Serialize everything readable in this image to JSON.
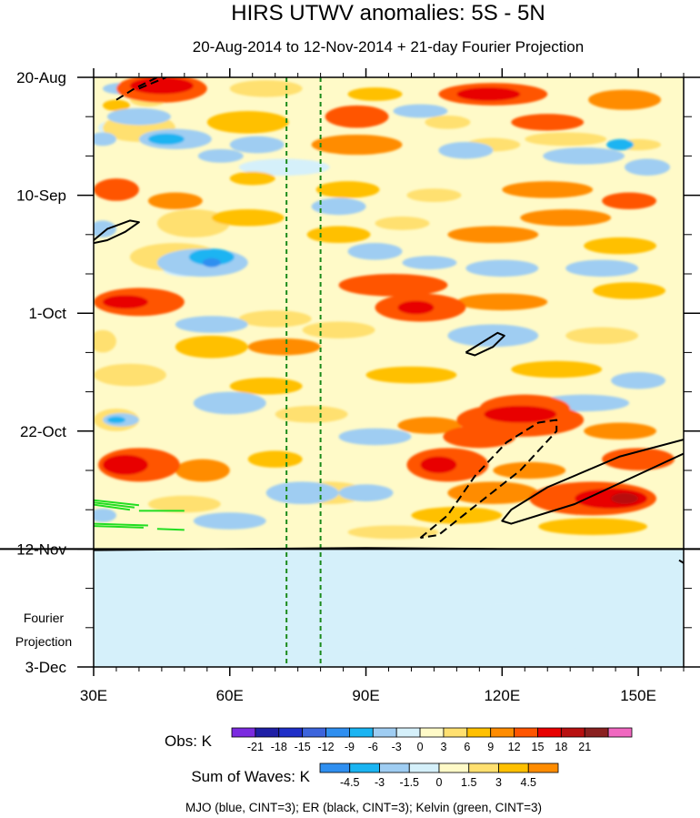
{
  "chart_data": {
    "type": "heatmap",
    "title": "HIRS UTWV anomalies: 5S - 5N",
    "subtitle": "20-Aug-2014 to 12-Nov-2014 + 21-day Fourier Projection",
    "x_ticks": [
      "30E",
      "60E",
      "90E",
      "120E",
      "150E"
    ],
    "x_tick_values": [
      30,
      60,
      90,
      120,
      150
    ],
    "xlim": [
      30,
      160
    ],
    "y_ticks": [
      "20-Aug",
      "10-Sep",
      "1-Oct",
      "22-Oct",
      "12-Nov",
      "3-Dec"
    ],
    "y_tick_days": [
      0,
      21,
      42,
      63,
      84,
      105
    ],
    "ylim_days": [
      0,
      105
    ],
    "projection_label": [
      "Fourier",
      "Projection"
    ],
    "projection_start_day": 84,
    "reference_lines_lon": [
      72.5,
      80
    ],
    "obs_colorbar": {
      "label": "Obs: K",
      "ticks": [
        "-21",
        "-18",
        "-15",
        "-12",
        "-9",
        "-6",
        "-3",
        "0",
        "3",
        "6",
        "9",
        "12",
        "15",
        "18",
        "21"
      ],
      "colors": [
        "#7b2be0",
        "#1f1fa6",
        "#1f2fc8",
        "#3c64dc",
        "#2f8ff0",
        "#1ab4f2",
        "#9fcdf2",
        "#d5f0fa",
        "#fffac8",
        "#ffe070",
        "#ffc000",
        "#ff8c00",
        "#ff5500",
        "#e80000",
        "#b81010",
        "#8a2020",
        "#f068c0"
      ]
    },
    "waves_colorbar": {
      "label": "Sum of Waves: K",
      "ticks": [
        "-4.5",
        "-3",
        "-1.5",
        "0",
        "1.5",
        "3",
        "4.5"
      ],
      "colors": [
        "#2f8ff0",
        "#1ab4f2",
        "#9fcdf2",
        "#d5f0fa",
        "#fffac8",
        "#ffe070",
        "#ffc000",
        "#ff8c00"
      ]
    },
    "footer": "MJO (blue, CINT=3); ER (black, CINT=3); Kelvin (green, CINT=3)",
    "anomaly_regions": [
      {
        "lon": 45,
        "day": 1.5,
        "rlon": 7,
        "rday": 1.5,
        "level": 5
      },
      {
        "lon": 45,
        "day": 2,
        "rlon": 10,
        "rday": 2.5,
        "level": 4
      },
      {
        "lon": 42,
        "day": 4,
        "rlon": 4,
        "rday": 1.2,
        "level": 1
      },
      {
        "lon": 35,
        "day": 5,
        "rlon": 3,
        "rday": 1,
        "level": 2
      },
      {
        "lon": 40,
        "day": 9,
        "rlon": 8,
        "rday": 2.5,
        "level": 1
      },
      {
        "lon": 34,
        "day": 9,
        "rlon": 3,
        "rday": 1.2,
        "level": 0
      },
      {
        "lon": 48,
        "day": 11,
        "rlon": 5,
        "rday": 1.5,
        "level": 1
      },
      {
        "lon": 68,
        "day": 2,
        "rlon": 8,
        "rday": 1.5,
        "level": 1
      },
      {
        "lon": 64,
        "day": 8,
        "rlon": 9,
        "rday": 2,
        "level": 2
      },
      {
        "lon": 92,
        "day": 3,
        "rlon": 6,
        "rday": 1.2,
        "level": 2
      },
      {
        "lon": 88,
        "day": 7,
        "rlon": 7,
        "rday": 2,
        "level": 4
      },
      {
        "lon": 88,
        "day": 12,
        "rlon": 10,
        "rday": 1.8,
        "level": 3
      },
      {
        "lon": 118,
        "day": 3,
        "rlon": 12,
        "rday": 2,
        "level": 4
      },
      {
        "lon": 117,
        "day": 3,
        "rlon": 7,
        "rday": 1.2,
        "level": 5
      },
      {
        "lon": 108,
        "day": 8,
        "rlon": 5,
        "rday": 1.2,
        "level": 1
      },
      {
        "lon": 130,
        "day": 8,
        "rlon": 8,
        "rday": 1.5,
        "level": 4
      },
      {
        "lon": 134,
        "day": 11,
        "rlon": 9,
        "rday": 1.2,
        "level": 1
      },
      {
        "lon": 118,
        "day": 12,
        "rlon": 6,
        "rday": 1.2,
        "level": 1
      },
      {
        "lon": 147,
        "day": 4,
        "rlon": 8,
        "rday": 1.8,
        "level": 3
      },
      {
        "lon": 150,
        "day": 12,
        "rlon": 5,
        "rday": 1,
        "level": 1
      },
      {
        "lon": 35,
        "day": 20,
        "rlon": 5,
        "rday": 2,
        "level": 4
      },
      {
        "lon": 48,
        "day": 22,
        "rlon": 6,
        "rday": 1.5,
        "level": 3
      },
      {
        "lon": 65,
        "day": 18,
        "rlon": 5,
        "rday": 1.2,
        "level": 2
      },
      {
        "lon": 86,
        "day": 20,
        "rlon": 7,
        "rday": 1.5,
        "level": 2
      },
      {
        "lon": 105,
        "day": 21,
        "rlon": 6,
        "rday": 1.2,
        "level": 1
      },
      {
        "lon": 130,
        "day": 20,
        "rlon": 10,
        "rday": 1.5,
        "level": 3
      },
      {
        "lon": 148,
        "day": 22,
        "rlon": 6,
        "rday": 1.5,
        "level": 4
      },
      {
        "lon": 134,
        "day": 25,
        "rlon": 10,
        "rday": 1.5,
        "level": 3
      },
      {
        "lon": 52,
        "day": 26,
        "rlon": 8,
        "rday": 2.5,
        "level": 1
      },
      {
        "lon": 48,
        "day": 32,
        "rlon": 10,
        "rday": 2.5,
        "level": 1
      },
      {
        "lon": 50,
        "day": 34,
        "rlon": 5,
        "rday": 1.5,
        "level": 0
      },
      {
        "lon": 64,
        "day": 25,
        "rlon": 8,
        "rday": 1.5,
        "level": 2
      },
      {
        "lon": 84,
        "day": 28,
        "rlon": 7,
        "rday": 1.5,
        "level": 2
      },
      {
        "lon": 98,
        "day": 26,
        "rlon": 6,
        "rday": 1.2,
        "level": 1
      },
      {
        "lon": 118,
        "day": 28,
        "rlon": 10,
        "rday": 1.5,
        "level": 3
      },
      {
        "lon": 146,
        "day": 30,
        "rlon": 8,
        "rday": 1.5,
        "level": 2
      },
      {
        "lon": 40,
        "day": 40,
        "rlon": 10,
        "rday": 2.5,
        "level": 4
      },
      {
        "lon": 37,
        "day": 40,
        "rlon": 5,
        "rday": 1.2,
        "level": 5
      },
      {
        "lon": 96,
        "day": 37,
        "rlon": 12,
        "rday": 2,
        "level": 4
      },
      {
        "lon": 102,
        "day": 41,
        "rlon": 10,
        "rday": 2.5,
        "level": 4
      },
      {
        "lon": 101,
        "day": 41,
        "rlon": 4,
        "rday": 1.2,
        "level": 5
      },
      {
        "lon": 120,
        "day": 40,
        "rlon": 10,
        "rday": 1.5,
        "level": 3
      },
      {
        "lon": 148,
        "day": 38,
        "rlon": 8,
        "rday": 1.5,
        "level": 2
      },
      {
        "lon": 70,
        "day": 43,
        "rlon": 8,
        "rday": 1.5,
        "level": 1
      },
      {
        "lon": 32,
        "day": 47,
        "rlon": 3,
        "rday": 2,
        "level": 1
      },
      {
        "lon": 56,
        "day": 48,
        "rlon": 8,
        "rday": 2,
        "level": 2
      },
      {
        "lon": 84,
        "day": 45,
        "rlon": 8,
        "rday": 1.5,
        "level": 1
      },
      {
        "lon": 72,
        "day": 48,
        "rlon": 8,
        "rday": 1.5,
        "level": 3
      },
      {
        "lon": 142,
        "day": 46,
        "rlon": 8,
        "rday": 1.5,
        "level": 1
      },
      {
        "lon": 38,
        "day": 53,
        "rlon": 8,
        "rday": 2,
        "level": 1
      },
      {
        "lon": 68,
        "day": 55,
        "rlon": 8,
        "rday": 1.5,
        "level": 2
      },
      {
        "lon": 100,
        "day": 53,
        "rlon": 10,
        "rday": 1.5,
        "level": 2
      },
      {
        "lon": 132,
        "day": 52,
        "rlon": 10,
        "rday": 1.5,
        "level": 2
      },
      {
        "lon": 35,
        "day": 61,
        "rlon": 5,
        "rday": 2,
        "level": 1
      },
      {
        "lon": 78,
        "day": 60,
        "rlon": 8,
        "rday": 1.5,
        "level": 1
      },
      {
        "lon": 125,
        "day": 59,
        "rlon": 10,
        "rday": 2.5,
        "level": 4
      },
      {
        "lon": 124,
        "day": 61,
        "rlon": 14,
        "rday": 3,
        "level": 4
      },
      {
        "lon": 124,
        "day": 60,
        "rlon": 8,
        "rday": 1.5,
        "level": 5
      },
      {
        "lon": 104,
        "day": 62,
        "rlon": 7,
        "rday": 1.5,
        "level": 3
      },
      {
        "lon": 115,
        "day": 64,
        "rlon": 8,
        "rday": 2,
        "level": 4
      },
      {
        "lon": 146,
        "day": 63,
        "rlon": 8,
        "rday": 1.5,
        "level": 3
      },
      {
        "lon": 40,
        "day": 69,
        "rlon": 9,
        "rday": 3,
        "level": 4
      },
      {
        "lon": 37,
        "day": 69,
        "rlon": 5,
        "rday": 1.8,
        "level": 5
      },
      {
        "lon": 54,
        "day": 70,
        "rlon": 6,
        "rday": 2,
        "level": 3
      },
      {
        "lon": 108,
        "day": 69,
        "rlon": 9,
        "rday": 3,
        "level": 4
      },
      {
        "lon": 106,
        "day": 69,
        "rlon": 4,
        "rday": 1.5,
        "level": 5
      },
      {
        "lon": 126,
        "day": 70,
        "rlon": 8,
        "rday": 1.5,
        "level": 3
      },
      {
        "lon": 150,
        "day": 68,
        "rlon": 8,
        "rday": 2,
        "level": 4
      },
      {
        "lon": 70,
        "day": 68,
        "rlon": 6,
        "rday": 1.5,
        "level": 2
      },
      {
        "lon": 140,
        "day": 75,
        "rlon": 14,
        "rday": 3,
        "level": 4
      },
      {
        "lon": 144,
        "day": 75,
        "rlon": 8,
        "rday": 1.8,
        "level": 5
      },
      {
        "lon": 147,
        "day": 75,
        "rlon": 3,
        "rday": 1,
        "level": 6
      },
      {
        "lon": 118,
        "day": 74,
        "rlon": 10,
        "rday": 2,
        "level": 3
      },
      {
        "lon": 110,
        "day": 78,
        "rlon": 10,
        "rday": 1.5,
        "level": 2
      },
      {
        "lon": 140,
        "day": 80,
        "rlon": 12,
        "rday": 1.5,
        "level": 2
      },
      {
        "lon": 82,
        "day": 74,
        "rlon": 8,
        "rday": 2,
        "level": 1
      },
      {
        "lon": 50,
        "day": 76,
        "rlon": 8,
        "rday": 1.5,
        "level": 1
      },
      {
        "lon": 96,
        "day": 81,
        "rlon": 10,
        "rday": 1.2,
        "level": 1
      },
      {
        "lon": 120,
        "day": 86,
        "rlon": 8,
        "rday": 1,
        "level": 0
      },
      {
        "lon": 70,
        "day": 88,
        "rlon": 10,
        "rday": 1.2,
        "level": 0
      },
      {
        "lon": 120,
        "day": 93,
        "rlon": 10,
        "rday": 1.2,
        "level": 0
      },
      {
        "lon": 55,
        "day": 98,
        "rlon": 8,
        "rday": 1,
        "level": 0
      },
      {
        "lon": 90,
        "day": 101,
        "rlon": 10,
        "rday": 1.2,
        "level": 0
      },
      {
        "lon": 140,
        "day": 103,
        "rlon": 8,
        "rday": 1,
        "level": 0
      },
      {
        "lon": 36,
        "day": 2,
        "rlon": 4,
        "rday": 1,
        "level": -2
      },
      {
        "lon": 40,
        "day": 7,
        "rlon": 7,
        "rday": 1.5,
        "level": -2
      },
      {
        "lon": 32,
        "day": 11,
        "rlon": 3,
        "rday": 1.2,
        "level": -2
      },
      {
        "lon": 48,
        "day": 11,
        "rlon": 8,
        "rday": 1.8,
        "level": -2
      },
      {
        "lon": 46,
        "day": 11,
        "rlon": 4,
        "rday": 1,
        "level": -3
      },
      {
        "lon": 66,
        "day": 12,
        "rlon": 6,
        "rday": 1.5,
        "level": -2
      },
      {
        "lon": 58,
        "day": 14,
        "rlon": 5,
        "rday": 1.2,
        "level": -2
      },
      {
        "lon": 102,
        "day": 6,
        "rlon": 6,
        "rday": 1.2,
        "level": -2
      },
      {
        "lon": 112,
        "day": 13,
        "rlon": 6,
        "rday": 1.5,
        "level": -2
      },
      {
        "lon": 138,
        "day": 14,
        "rlon": 9,
        "rday": 1.5,
        "level": -2
      },
      {
        "lon": 146,
        "day": 12,
        "rlon": 3,
        "rday": 1,
        "level": -3
      },
      {
        "lon": 152,
        "day": 16,
        "rlon": 5,
        "rday": 1.5,
        "level": -2
      },
      {
        "lon": 72,
        "day": 16,
        "rlon": 10,
        "rday": 1.5,
        "level": -1
      },
      {
        "lon": 32,
        "day": 27,
        "rlon": 3,
        "rday": 1.5,
        "level": -2
      },
      {
        "lon": 54,
        "day": 33,
        "rlon": 10,
        "rday": 2.5,
        "level": -2
      },
      {
        "lon": 56,
        "day": 32,
        "rlon": 5,
        "rday": 1.5,
        "level": -3
      },
      {
        "lon": 56,
        "day": 33,
        "rlon": 2,
        "rday": 0.8,
        "level": -4
      },
      {
        "lon": 84,
        "day": 23,
        "rlon": 6,
        "rday": 1.5,
        "level": -2
      },
      {
        "lon": 92,
        "day": 31,
        "rlon": 6,
        "rday": 1.5,
        "level": -2
      },
      {
        "lon": 104,
        "day": 33,
        "rlon": 6,
        "rday": 1.2,
        "level": -2
      },
      {
        "lon": 120,
        "day": 34,
        "rlon": 8,
        "rday": 1.5,
        "level": -2
      },
      {
        "lon": 142,
        "day": 34,
        "rlon": 8,
        "rday": 1.5,
        "level": -2
      },
      {
        "lon": 118,
        "day": 46,
        "rlon": 10,
        "rday": 2,
        "level": -2
      },
      {
        "lon": 56,
        "day": 44,
        "rlon": 8,
        "rday": 1.5,
        "level": -2
      },
      {
        "lon": 150,
        "day": 54,
        "rlon": 6,
        "rday": 1.5,
        "level": -2
      },
      {
        "lon": 36,
        "day": 61,
        "rlon": 4,
        "rday": 1.2,
        "level": -2
      },
      {
        "lon": 35,
        "day": 61,
        "rlon": 2,
        "rday": 0.6,
        "level": -3
      },
      {
        "lon": 60,
        "day": 58,
        "rlon": 8,
        "rday": 2,
        "level": -2
      },
      {
        "lon": 92,
        "day": 64,
        "rlon": 8,
        "rday": 1.5,
        "level": -2
      },
      {
        "lon": 138,
        "day": 58,
        "rlon": 10,
        "rday": 1.5,
        "level": -2
      },
      {
        "lon": 76,
        "day": 74,
        "rlon": 8,
        "rday": 2,
        "level": -2
      },
      {
        "lon": 90,
        "day": 74,
        "rlon": 6,
        "rday": 1.5,
        "level": -2
      },
      {
        "lon": 60,
        "day": 79,
        "rlon": 8,
        "rday": 1.5,
        "level": -2
      },
      {
        "lon": 32,
        "day": 78,
        "rlon": 3,
        "rday": 1.2,
        "level": -2
      }
    ],
    "er_contours": [
      {
        "style": "dashed",
        "points": [
          [
            35,
            4
          ],
          [
            39,
            2
          ],
          [
            44,
            0
          ]
        ]
      },
      {
        "style": "dashed",
        "points": [
          [
            40,
            2
          ],
          [
            46,
            0
          ]
        ]
      },
      {
        "style": "solid",
        "points": [
          [
            30,
            29
          ],
          [
            33,
            27
          ],
          [
            38,
            25.5
          ],
          [
            40,
            25.8
          ],
          [
            37,
            27.5
          ],
          [
            33,
            29
          ],
          [
            30,
            29.5
          ]
        ]
      },
      {
        "style": "solid",
        "points": [
          [
            112,
            49
          ],
          [
            116,
            47
          ],
          [
            119,
            45.5
          ],
          [
            120.5,
            46
          ],
          [
            118,
            48
          ],
          [
            114,
            49.5
          ],
          [
            112,
            49
          ]
        ]
      },
      {
        "style": "dashed",
        "points": [
          [
            102,
            82
          ],
          [
            108,
            78
          ],
          [
            114,
            71
          ],
          [
            121,
            65
          ],
          [
            128,
            61.5
          ],
          [
            132,
            61
          ],
          [
            132,
            63
          ],
          [
            124,
            70
          ],
          [
            113,
            77
          ],
          [
            106,
            81.5
          ],
          [
            102,
            82
          ]
        ]
      },
      {
        "style": "solid",
        "points": [
          [
            160,
            64.5
          ],
          [
            146,
            67.5
          ],
          [
            130,
            73
          ],
          [
            122,
            77
          ],
          [
            120,
            79
          ],
          [
            122,
            79.5
          ],
          [
            136,
            76
          ],
          [
            152,
            70
          ],
          [
            160,
            67
          ]
        ]
      },
      {
        "style": "solid",
        "points": [
          [
            30,
            84.2
          ],
          [
            60,
            84
          ],
          [
            90,
            83.8
          ],
          [
            120,
            84
          ],
          [
            160,
            84
          ]
        ]
      },
      {
        "style": "solid",
        "points": [
          [
            159,
            86
          ],
          [
            160,
            86.5
          ]
        ]
      }
    ],
    "kelvin_contours": [
      {
        "points": [
          [
            30,
            75.3
          ],
          [
            40,
            76.2
          ]
        ]
      },
      {
        "points": [
          [
            30,
            75.7
          ],
          [
            39,
            76.6
          ]
        ]
      },
      {
        "points": [
          [
            30,
            76.1
          ],
          [
            38,
            77
          ]
        ]
      },
      {
        "points": [
          [
            40,
            77.2
          ],
          [
            50,
            77.2
          ]
        ]
      },
      {
        "points": [
          [
            30,
            79.5
          ],
          [
            42,
            79.8
          ]
        ]
      },
      {
        "points": [
          [
            30,
            79.9
          ],
          [
            41,
            80.2
          ]
        ]
      },
      {
        "points": [
          [
            44,
            80.4
          ],
          [
            50,
            80.6
          ]
        ]
      }
    ]
  }
}
